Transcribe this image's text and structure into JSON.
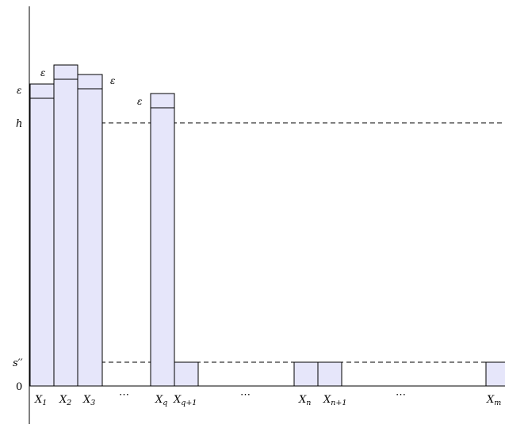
{
  "diagram": {
    "colors": {
      "bar_fill": "#e6e6fa",
      "stroke": "#000000",
      "dashed": "#000000"
    },
    "y_labels": {
      "epsilon": "ε",
      "h": "h",
      "s_double_prime": "s′′",
      "zero": "0"
    },
    "reference_lines": [
      {
        "name": "h",
        "style": "dashed"
      },
      {
        "name": "s''",
        "style": "dashed"
      }
    ],
    "columns": [
      {
        "base": "X",
        "sub": "1"
      },
      {
        "base": "X",
        "sub": "2"
      },
      {
        "base": "X",
        "sub": "3"
      },
      {
        "base": "X",
        "sub": "q"
      },
      {
        "base": "X",
        "sub": "q+1"
      },
      {
        "base": "X",
        "sub": "n"
      },
      {
        "base": "X",
        "sub": "n+1"
      },
      {
        "base": "X",
        "sub": "m"
      }
    ],
    "ellipsis": [
      "⋯",
      "⋯",
      "⋯"
    ],
    "epsilon_labels": [
      "ε",
      "ε",
      "ε"
    ]
  }
}
